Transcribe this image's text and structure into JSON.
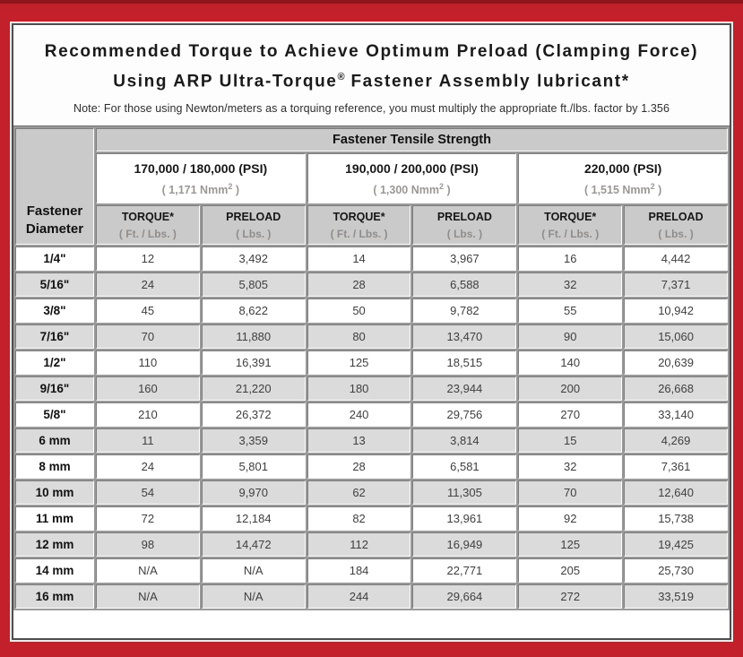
{
  "colors": {
    "frame_red": "#c2202a",
    "frame_top_dark_red": "#8e151b",
    "header_gray": "#cbcaca",
    "row_alt_gray": "#dbdbdb",
    "grid_gray": "#9b9a9a"
  },
  "header": {
    "title_line1": "Recommended Torque to Achieve Optimum Preload (Clamping Force)",
    "title_line2_pre": "Using ARP Ultra-Torque",
    "title_line2_sup": "®",
    "title_line2_post": " Fastener Assembly lubricant*",
    "note": "Note: For those using Newton/meters as a torquing reference, you must multiply the appropriate ft./lbs. factor by 1.356"
  },
  "table": {
    "tensile_header": "Fastener Tensile Strength",
    "diameter_header": "Fastener Diameter",
    "groups": [
      {
        "psi": "170,000 / 180,000 (PSI)",
        "nmm_prefix": "( 1,171 Nmm",
        "nmm_sup": "2",
        "nmm_suffix": " )"
      },
      {
        "psi": "190,000 / 200,000 (PSI)",
        "nmm_prefix": "( 1,300 Nmm",
        "nmm_sup": "2",
        "nmm_suffix": " )"
      },
      {
        "psi": "220,000 (PSI)",
        "nmm_prefix": "( 1,515 Nmm",
        "nmm_sup": "2",
        "nmm_suffix": " )"
      }
    ],
    "subheaders": [
      {
        "label": "TORQUE*",
        "unit": "( Ft. / Lbs. )"
      },
      {
        "label": "PRELOAD",
        "unit": "( Lbs. )"
      },
      {
        "label": "TORQUE*",
        "unit": "( Ft. / Lbs. )"
      },
      {
        "label": "PRELOAD",
        "unit": "( Lbs. )"
      },
      {
        "label": "TORQUE*",
        "unit": "( Ft. / Lbs. )"
      },
      {
        "label": "PRELOAD",
        "unit": "( Lbs. )"
      }
    ],
    "rows": [
      {
        "diameter": "1/4\"",
        "values": [
          "12",
          "3,492",
          "14",
          "3,967",
          "16",
          "4,442"
        ]
      },
      {
        "diameter": "5/16\"",
        "values": [
          "24",
          "5,805",
          "28",
          "6,588",
          "32",
          "7,371"
        ]
      },
      {
        "diameter": "3/8\"",
        "values": [
          "45",
          "8,622",
          "50",
          "9,782",
          "55",
          "10,942"
        ]
      },
      {
        "diameter": "7/16\"",
        "values": [
          "70",
          "11,880",
          "80",
          "13,470",
          "90",
          "15,060"
        ]
      },
      {
        "diameter": "1/2\"",
        "values": [
          "110",
          "16,391",
          "125",
          "18,515",
          "140",
          "20,639"
        ]
      },
      {
        "diameter": "9/16\"",
        "values": [
          "160",
          "21,220",
          "180",
          "23,944",
          "200",
          "26,668"
        ]
      },
      {
        "diameter": "5/8\"",
        "values": [
          "210",
          "26,372",
          "240",
          "29,756",
          "270",
          "33,140"
        ]
      },
      {
        "diameter": "6 mm",
        "values": [
          "11",
          "3,359",
          "13",
          "3,814",
          "15",
          "4,269"
        ]
      },
      {
        "diameter": "8 mm",
        "values": [
          "24",
          "5,801",
          "28",
          "6,581",
          "32",
          "7,361"
        ]
      },
      {
        "diameter": "10 mm",
        "values": [
          "54",
          "9,970",
          "62",
          "11,305",
          "70",
          "12,640"
        ]
      },
      {
        "diameter": "11 mm",
        "values": [
          "72",
          "12,184",
          "82",
          "13,961",
          "92",
          "15,738"
        ]
      },
      {
        "diameter": "12 mm",
        "values": [
          "98",
          "14,472",
          "112",
          "16,949",
          "125",
          "19,425"
        ]
      },
      {
        "diameter": "14 mm",
        "values": [
          "N/A",
          "N/A",
          "184",
          "22,771",
          "205",
          "25,730"
        ]
      },
      {
        "diameter": "16 mm",
        "values": [
          "N/A",
          "N/A",
          "244",
          "29,664",
          "272",
          "33,519"
        ]
      }
    ]
  }
}
